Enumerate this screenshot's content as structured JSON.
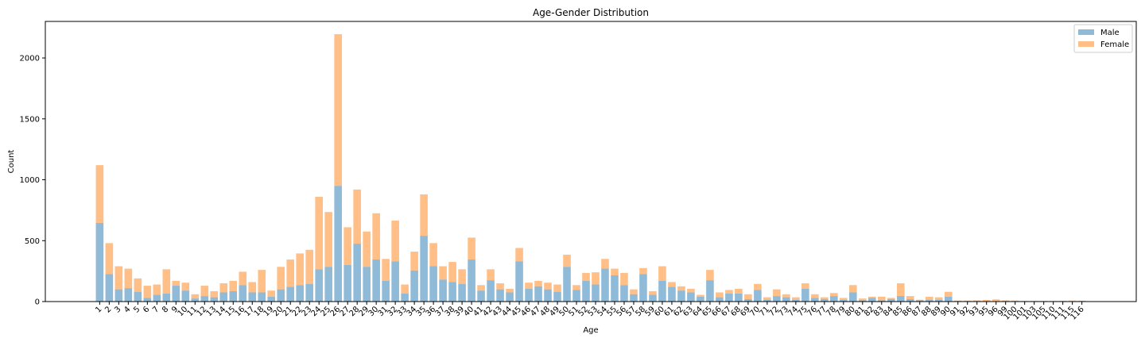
{
  "chart_data": {
    "type": "bar",
    "stacked": true,
    "title": "Age-Gender Distribution",
    "xlabel": "Age",
    "ylabel": "Count",
    "ylim": [
      0,
      2300
    ],
    "yticks": [
      0,
      500,
      1000,
      1500,
      2000
    ],
    "grid": false,
    "legend_position": "top-right",
    "categories": [
      "1",
      "2",
      "3",
      "4",
      "5",
      "6",
      "7",
      "8",
      "9",
      "10",
      "11",
      "12",
      "13",
      "14",
      "15",
      "16",
      "17",
      "18",
      "19",
      "20",
      "21",
      "22",
      "23",
      "24",
      "25",
      "26",
      "27",
      "28",
      "29",
      "30",
      "31",
      "32",
      "33",
      "34",
      "35",
      "36",
      "37",
      "38",
      "39",
      "40",
      "41",
      "42",
      "43",
      "44",
      "45",
      "46",
      "47",
      "48",
      "49",
      "50",
      "51",
      "52",
      "53",
      "54",
      "55",
      "56",
      "57",
      "58",
      "59",
      "60",
      "61",
      "62",
      "63",
      "64",
      "65",
      "66",
      "67",
      "68",
      "69",
      "70",
      "71",
      "72",
      "73",
      "74",
      "75",
      "76",
      "77",
      "78",
      "79",
      "80",
      "81",
      "82",
      "83",
      "84",
      "85",
      "86",
      "87",
      "88",
      "89",
      "90",
      "91",
      "92",
      "93",
      "95",
      "96",
      "99",
      "100",
      "101",
      "103",
      "105",
      "110",
      "111",
      "115",
      "116"
    ],
    "series": [
      {
        "name": "Male",
        "color": "#1f77b4",
        "values": [
          645,
          225,
          100,
          110,
          80,
          30,
          55,
          65,
          130,
          90,
          25,
          45,
          35,
          75,
          85,
          135,
          75,
          75,
          40,
          100,
          120,
          135,
          145,
          265,
          285,
          950,
          300,
          475,
          285,
          345,
          170,
          330,
          65,
          255,
          540,
          290,
          180,
          160,
          145,
          345,
          90,
          175,
          100,
          75,
          330,
          105,
          125,
          100,
          80,
          285,
          95,
          170,
          140,
          270,
          215,
          135,
          60,
          225,
          55,
          170,
          120,
          90,
          75,
          40,
          175,
          35,
          65,
          65,
          20,
          95,
          15,
          45,
          35,
          15,
          105,
          30,
          20,
          45,
          15,
          75,
          10,
          30,
          10,
          20,
          45,
          20,
          10,
          15,
          15,
          40,
          5,
          3,
          5,
          3,
          3,
          5,
          3,
          2,
          2,
          2,
          2,
          3,
          3,
          2
        ]
      },
      {
        "name": "Female",
        "color": "#ff7f0e",
        "values": [
          475,
          255,
          190,
          160,
          110,
          100,
          85,
          200,
          40,
          65,
          35,
          85,
          50,
          75,
          85,
          110,
          85,
          185,
          50,
          185,
          225,
          260,
          280,
          595,
          450,
          1245,
          310,
          445,
          290,
          380,
          180,
          335,
          75,
          155,
          340,
          190,
          110,
          165,
          120,
          180,
          45,
          90,
          50,
          30,
          110,
          50,
          45,
          55,
          60,
          100,
          40,
          65,
          100,
          80,
          55,
          100,
          40,
          50,
          30,
          120,
          40,
          35,
          30,
          15,
          85,
          40,
          30,
          40,
          40,
          50,
          20,
          55,
          25,
          20,
          45,
          30,
          15,
          25,
          15,
          60,
          15,
          10,
          30,
          10,
          105,
          25,
          5,
          25,
          20,
          40,
          3,
          5,
          5,
          10,
          15,
          5,
          5,
          3,
          3,
          3,
          3,
          3,
          5,
          5
        ]
      }
    ]
  }
}
